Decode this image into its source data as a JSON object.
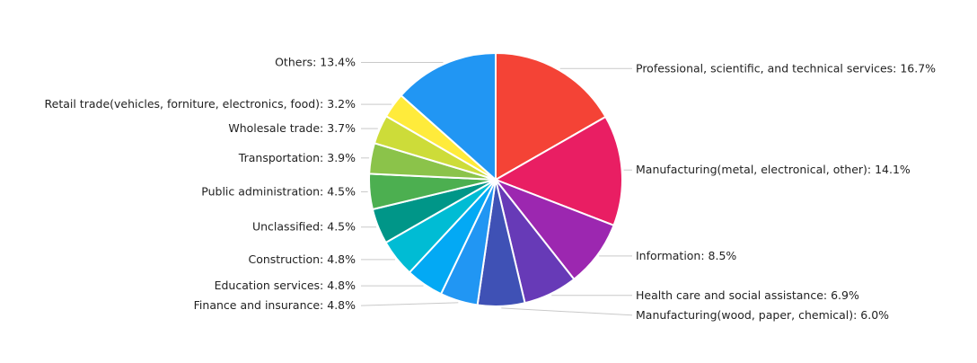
{
  "chart_data": {
    "type": "pie",
    "title": "",
    "slices": [
      {
        "label": "Professional, scientific, and technical services: 16.7%",
        "value": 16.7,
        "color": "#f44336"
      },
      {
        "label": "Manufacturing(metal, electronical, other): 14.1%",
        "value": 14.1,
        "color": "#e91e63"
      },
      {
        "label": "Information: 8.5%",
        "value": 8.5,
        "color": "#9c27b0"
      },
      {
        "label": "Health care and social assistance: 6.9%",
        "value": 6.9,
        "color": "#673ab7"
      },
      {
        "label": "Manufacturing(wood, paper, chemical): 6.0%",
        "value": 6.0,
        "color": "#3f51b5"
      },
      {
        "label": "Finance and insurance: 4.8%",
        "value": 4.8,
        "color": "#2196f3"
      },
      {
        "label": "Education services: 4.8%",
        "value": 4.8,
        "color": "#03a9f4"
      },
      {
        "label": "Construction: 4.8%",
        "value": 4.8,
        "color": "#00bcd4"
      },
      {
        "label": "Unclassified: 4.5%",
        "value": 4.5,
        "color": "#009688"
      },
      {
        "label": "Public administration: 4.5%",
        "value": 4.5,
        "color": "#4caf50"
      },
      {
        "label": "Transportation: 3.9%",
        "value": 3.9,
        "color": "#8bc34a"
      },
      {
        "label": "Wholesale trade: 3.7%",
        "value": 3.7,
        "color": "#cddc39"
      },
      {
        "label": "Retail trade(vehicles, forniture, electronics, food): 3.2%",
        "value": 3.2,
        "color": "#ffeb3b"
      },
      {
        "label": "Others: 13.4%",
        "value": 13.4,
        "color": "#2196f3"
      }
    ]
  }
}
